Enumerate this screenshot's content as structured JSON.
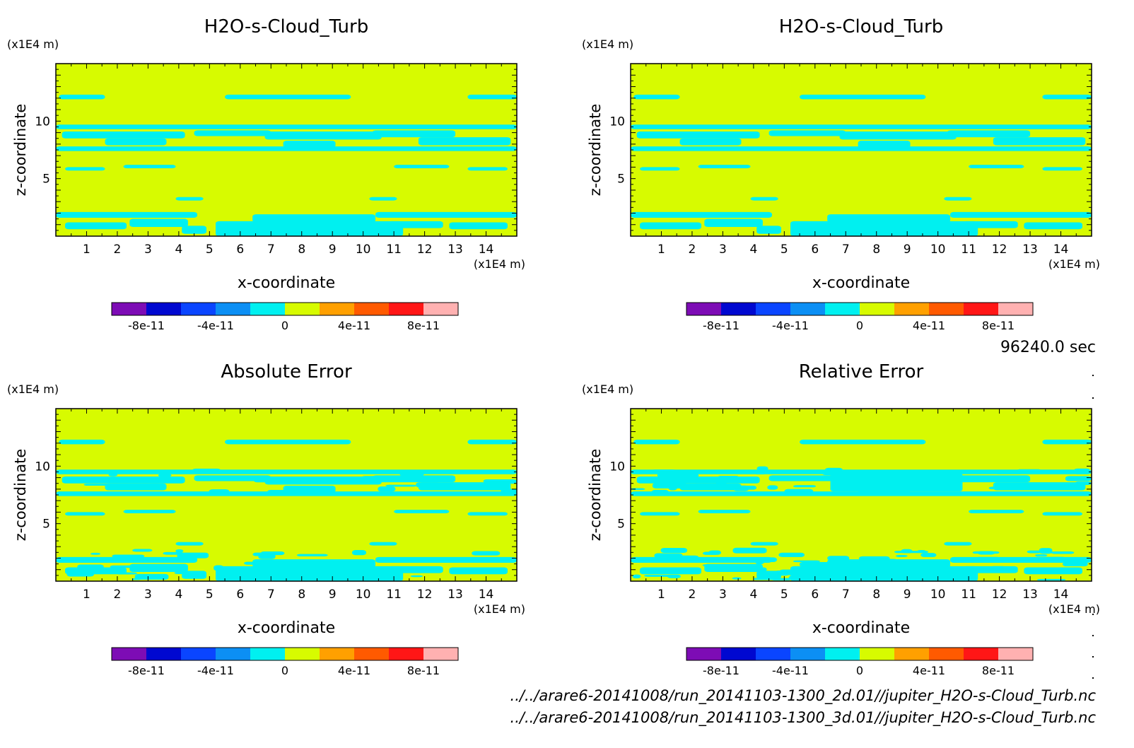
{
  "figure": {
    "time_label": "96240.0 sec",
    "file_paths": [
      "../../arare6-20141008/run_20141103-1300_2d.01//jupiter_H2O-s-Cloud_Turb.nc",
      "../../arare6-20141008/run_20141103-1300_3d.01//jupiter_H2O-s-Cloud_Turb.nc"
    ]
  },
  "colors": {
    "background_field": "#d7fb00",
    "cloud_contour": "#00f0f0",
    "colorbar": [
      "#7d0cb5",
      "#0008d0",
      "#0a45ff",
      "#0c8ff4",
      "#00f0f0",
      "#d7fb00",
      "#ffa000",
      "#ff5a00",
      "#ff1616",
      "#ffb1b1"
    ]
  },
  "chart_data": [
    {
      "type": "heatmap",
      "title": "H2O-s-Cloud_Turb",
      "xlabel": "x-coordinate",
      "ylabel": "z-coordinate",
      "x_unit": "(x1E4 m)",
      "y_unit": "(x1E4 m)",
      "xlim": [
        0,
        15
      ],
      "ylim": [
        0,
        15
      ],
      "xticks": [
        "1",
        "2",
        "3",
        "4",
        "5",
        "6",
        "7",
        "8",
        "9",
        "10",
        "11",
        "12",
        "13",
        "14"
      ],
      "yticks": [
        "5",
        "10"
      ],
      "colorbar_ticks": [
        "-8e-11",
        "-4e-11",
        "0",
        "4e-11",
        "8e-11"
      ],
      "colorbar_range": [
        -1e-10,
        1e-10
      ],
      "field_value_background": "0 to 2e-11",
      "field_value_contour": "-2e-11 to 0"
    },
    {
      "type": "heatmap",
      "title": "H2O-s-Cloud_Turb",
      "xlabel": "x-coordinate",
      "ylabel": "z-coordinate",
      "x_unit": "(x1E4 m)",
      "y_unit": "(x1E4 m)",
      "xlim": [
        0,
        15
      ],
      "ylim": [
        0,
        15
      ],
      "xticks": [
        "1",
        "2",
        "3",
        "4",
        "5",
        "6",
        "7",
        "8",
        "9",
        "10",
        "11",
        "12",
        "13",
        "14"
      ],
      "yticks": [
        "5",
        "10"
      ],
      "colorbar_ticks": [
        "-8e-11",
        "-4e-11",
        "0",
        "4e-11",
        "8e-11"
      ],
      "colorbar_range": [
        -1e-10,
        1e-10
      ],
      "field_value_background": "0 to 2e-11",
      "field_value_contour": "-2e-11 to 0"
    },
    {
      "type": "heatmap",
      "title": "Absolute Error",
      "xlabel": "x-coordinate",
      "ylabel": "z-coordinate",
      "x_unit": "(x1E4 m)",
      "y_unit": "(x1E4 m)",
      "xlim": [
        0,
        15
      ],
      "ylim": [
        0,
        15
      ],
      "xticks": [
        "1",
        "2",
        "3",
        "4",
        "5",
        "6",
        "7",
        "8",
        "9",
        "10",
        "11",
        "12",
        "13",
        "14"
      ],
      "yticks": [
        "5",
        "10"
      ],
      "colorbar_ticks": [
        "-8e-11",
        "-4e-11",
        "0",
        "4e-11",
        "8e-11"
      ],
      "colorbar_range": [
        -1e-10,
        1e-10
      ],
      "field_value_background": "0 to 2e-11",
      "field_value_contour": "-2e-11 to 0"
    },
    {
      "type": "heatmap",
      "title": "Relative Error",
      "xlabel": "x-coordinate",
      "ylabel": "z-coordinate",
      "x_unit": "(x1E4 m)",
      "y_unit": "(x1E4 m)",
      "xlim": [
        0,
        15
      ],
      "ylim": [
        0,
        15
      ],
      "xticks": [
        "1",
        "2",
        "3",
        "4",
        "5",
        "6",
        "7",
        "8",
        "9",
        "10",
        "11",
        "12",
        "13",
        "14"
      ],
      "yticks": [
        "5",
        "10"
      ],
      "colorbar_ticks": [
        "-8e-11",
        "-4e-11",
        "0",
        "4e-11",
        "8e-11"
      ],
      "colorbar_range": [
        -1e-10,
        1e-10
      ],
      "field_value_background": "0 to 2e-11",
      "field_value_contour": "-2e-11 to 0"
    }
  ]
}
